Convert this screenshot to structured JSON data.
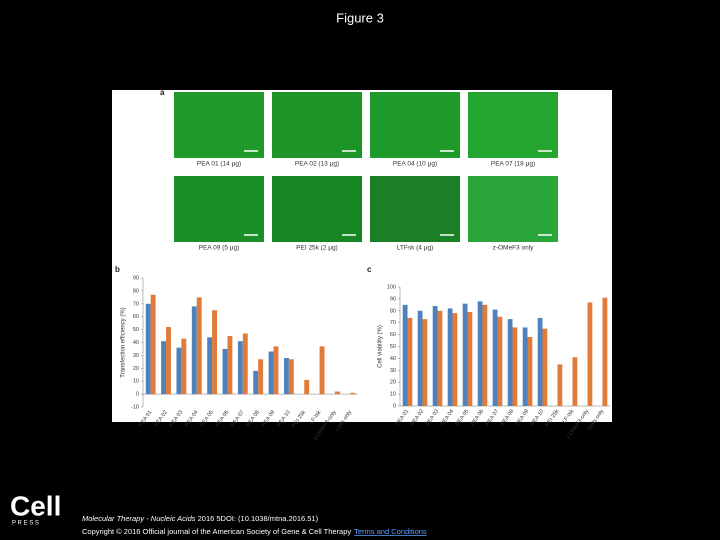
{
  "slide_title": "Figure 3",
  "logo": {
    "word": "Cell",
    "sub": "P R E S S"
  },
  "panel_a": {
    "letter": "a",
    "images": [
      {
        "label": "PEA 01 (14 μg)",
        "tint": "#1f9a2a"
      },
      {
        "label": "PEA 02 (13 μg)",
        "tint": "#1c9428"
      },
      {
        "label": "PEA 04 (10 μg)",
        "tint": "#1e9a2b"
      },
      {
        "label": "PEA 07 (18 μg)",
        "tint": "#23a52f"
      },
      {
        "label": "PEA 09 (5 μg)",
        "tint": "#1b8f27"
      },
      {
        "label": "PEI 25k (2 μg)",
        "tint": "#178524"
      },
      {
        "label": "LTFsk (4 μg)",
        "tint": "#1a7f25"
      },
      {
        "label": "z-OMeF3 only",
        "tint": "#2aa53a"
      }
    ]
  },
  "chart_data": [
    {
      "type": "bar",
      "panel": "b",
      "y_label": "Transfection efficiency (%)",
      "categories": [
        "PEA 01",
        "PEA 02",
        "PEA 03",
        "PEA 04",
        "PEA 05",
        "PEA 06",
        "PEA 07",
        "PEA 08",
        "PEA 09",
        "PEA 10",
        "PEI 25k",
        "LF-tsk",
        "z-OMeF3-only",
        "Cells only"
      ],
      "series": [
        {
          "color": "#4f81bd",
          "values": [
            70,
            41,
            36,
            68,
            44,
            35,
            41,
            18,
            33,
            28,
            null,
            null,
            null,
            null
          ]
        },
        {
          "color": "#e07b39",
          "values": [
            77,
            52,
            43,
            75,
            65,
            45,
            47,
            27,
            37,
            27,
            11,
            37,
            2,
            1
          ]
        }
      ],
      "ylim": [
        -10,
        90
      ],
      "yticks": [
        -10,
        0,
        10,
        20,
        30,
        40,
        50,
        60,
        70,
        80,
        90
      ]
    },
    {
      "type": "bar",
      "panel": "c",
      "y_label": "Cell viability (%)",
      "categories": [
        "PEA 01",
        "PEA 02",
        "PEA 03",
        "PEA 04",
        "PEA 05",
        "PEA 06",
        "PEA 07",
        "PEA 08",
        "PEA 09",
        "PEA 10",
        "PEI 25k",
        "LF-tsk",
        "z-OMeF3-only",
        "Cells only"
      ],
      "series": [
        {
          "color": "#4f81bd",
          "values": [
            85,
            80,
            84,
            82,
            86,
            88,
            81,
            73,
            66,
            74,
            null,
            null,
            null,
            null
          ]
        },
        {
          "color": "#e07b39",
          "values": [
            74,
            73,
            80,
            78,
            79,
            85,
            75,
            66,
            58,
            65,
            35,
            41,
            87,
            91
          ]
        }
      ],
      "ylim": [
        0,
        100
      ],
      "yticks": [
        0,
        10,
        20,
        30,
        40,
        50,
        60,
        70,
        80,
        90,
        100
      ]
    }
  ],
  "footer": {
    "journal": "Molecular Therapy - Nucleic Acids",
    "citation": " 2016 5DOI: (10.1038/mtna.2016.51)",
    "copyright": "Copyright © 2016 Official journal of the American Society of Gene & Cell Therapy",
    "link": "Terms and Conditions"
  }
}
